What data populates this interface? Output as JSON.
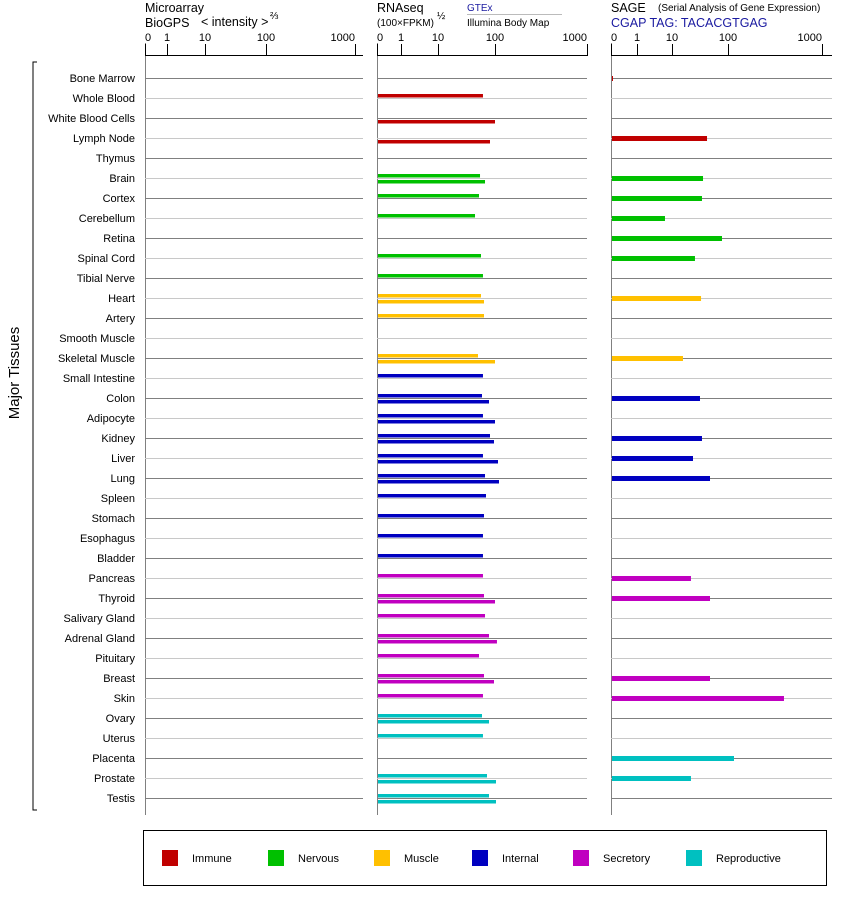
{
  "chart_data": {
    "type": "bar",
    "y_group_label": "Major Tissues",
    "categories": [
      "Bone Marrow",
      "Whole Blood",
      "White Blood Cells",
      "Lymph Node",
      "Thymus",
      "Brain",
      "Cortex",
      "Cerebellum",
      "Retina",
      "Spinal Cord",
      "Tibial Nerve",
      "Heart",
      "Artery",
      "Smooth Muscle",
      "Skeletal Muscle",
      "Small Intestine",
      "Colon",
      "Adipocyte",
      "Kidney",
      "Liver",
      "Lung",
      "Spleen",
      "Stomach",
      "Esophagus",
      "Bladder",
      "Pancreas",
      "Thyroid",
      "Salivary Gland",
      "Adrenal Gland",
      "Pituitary",
      "Breast",
      "Skin",
      "Ovary",
      "Uterus",
      "Placenta",
      "Prostate",
      "Testis"
    ],
    "groups": [
      "Immune",
      "Immune",
      "Immune",
      "Immune",
      "Immune",
      "Nervous",
      "Nervous",
      "Nervous",
      "Nervous",
      "Nervous",
      "Nervous",
      "Muscle",
      "Muscle",
      "Muscle",
      "Muscle",
      "Internal",
      "Internal",
      "Internal",
      "Internal",
      "Internal",
      "Internal",
      "Internal",
      "Internal",
      "Internal",
      "Internal",
      "Secretory",
      "Secretory",
      "Secretory",
      "Secretory",
      "Secretory",
      "Secretory",
      "Secretory",
      "Reproductive",
      "Reproductive",
      "Reproductive",
      "Reproductive",
      "Reproductive"
    ],
    "legend": [
      {
        "name": "Immune",
        "color": "#c00000"
      },
      {
        "name": "Nervous",
        "color": "#00c000"
      },
      {
        "name": "Muscle",
        "color": "#ffc000"
      },
      {
        "name": "Internal",
        "color": "#0000c0"
      },
      {
        "name": "Secretory",
        "color": "#c000c0"
      },
      {
        "name": "Reproductive",
        "color": "#00c0c0"
      }
    ],
    "legend_position": "bottom",
    "panels": [
      {
        "title": "Microarray",
        "subtitle": "BioGPS",
        "scale_label": "< intensity >",
        "scale_exp": "⅔",
        "ticks": [
          "0",
          "1",
          "10",
          "100",
          "1000"
        ],
        "series": []
      },
      {
        "title": "RNAseq",
        "scale_label": "(100×FPKM)",
        "scale_exp": "½",
        "ticks": [
          "0",
          "1",
          "10",
          "100",
          "1000"
        ],
        "series": [
          {
            "name": "GTEx",
            "values": [
              null,
              61.5,
              null,
              null,
              null,
              54.6,
              52.4,
              44.6,
              null,
              56.8,
              61.5,
              56.8,
              64.1,
              null,
              50.3,
              61.5,
              59.1,
              61.5,
              81.7,
              61.5,
              66.8,
              69.5,
              64.1,
              61.5,
              61.5,
              61.5,
              64.1,
              66.8,
              78.5,
              52.4,
              64.1,
              61.5,
              59.1,
              61.5,
              null,
              72.4,
              78.5
            ]
          },
          {
            "name": "Illumina Body Map",
            "values": [
              null,
              null,
              100,
              81.7,
              null,
              66.8,
              null,
              null,
              null,
              null,
              null,
              64.1,
              null,
              null,
              100,
              null,
              78.5,
              100,
              96,
              107.8,
              110.5,
              null,
              null,
              null,
              null,
              null,
              100,
              null,
              105,
              null,
              96,
              null,
              78.5,
              null,
              null,
              102.5,
              102.5
            ]
          }
        ]
      },
      {
        "title": "SAGE",
        "subtitle_note": "(Serial Analysis of Gene Expression)",
        "tag_label": "CGAP TAG: TACACGTGAG",
        "ticks": [
          "0",
          "1",
          "10",
          "100",
          "1000"
        ],
        "series": [
          {
            "name": "SAGE",
            "values": [
              0.04,
              null,
              null,
              42.2,
              null,
              35.8,
              34.3,
              6.3,
              78.1,
              25.7,
              null,
              33,
              null,
              null,
              15.7,
              null,
              31.6,
              null,
              34.3,
              23.7,
              47.7,
              null,
              null,
              null,
              null,
              21.8,
              47.7,
              null,
              null,
              null,
              47.7,
              394,
              null,
              null,
              115.8,
              21.8,
              null
            ]
          }
        ]
      }
    ],
    "xlim": [
      0,
      1000
    ]
  }
}
